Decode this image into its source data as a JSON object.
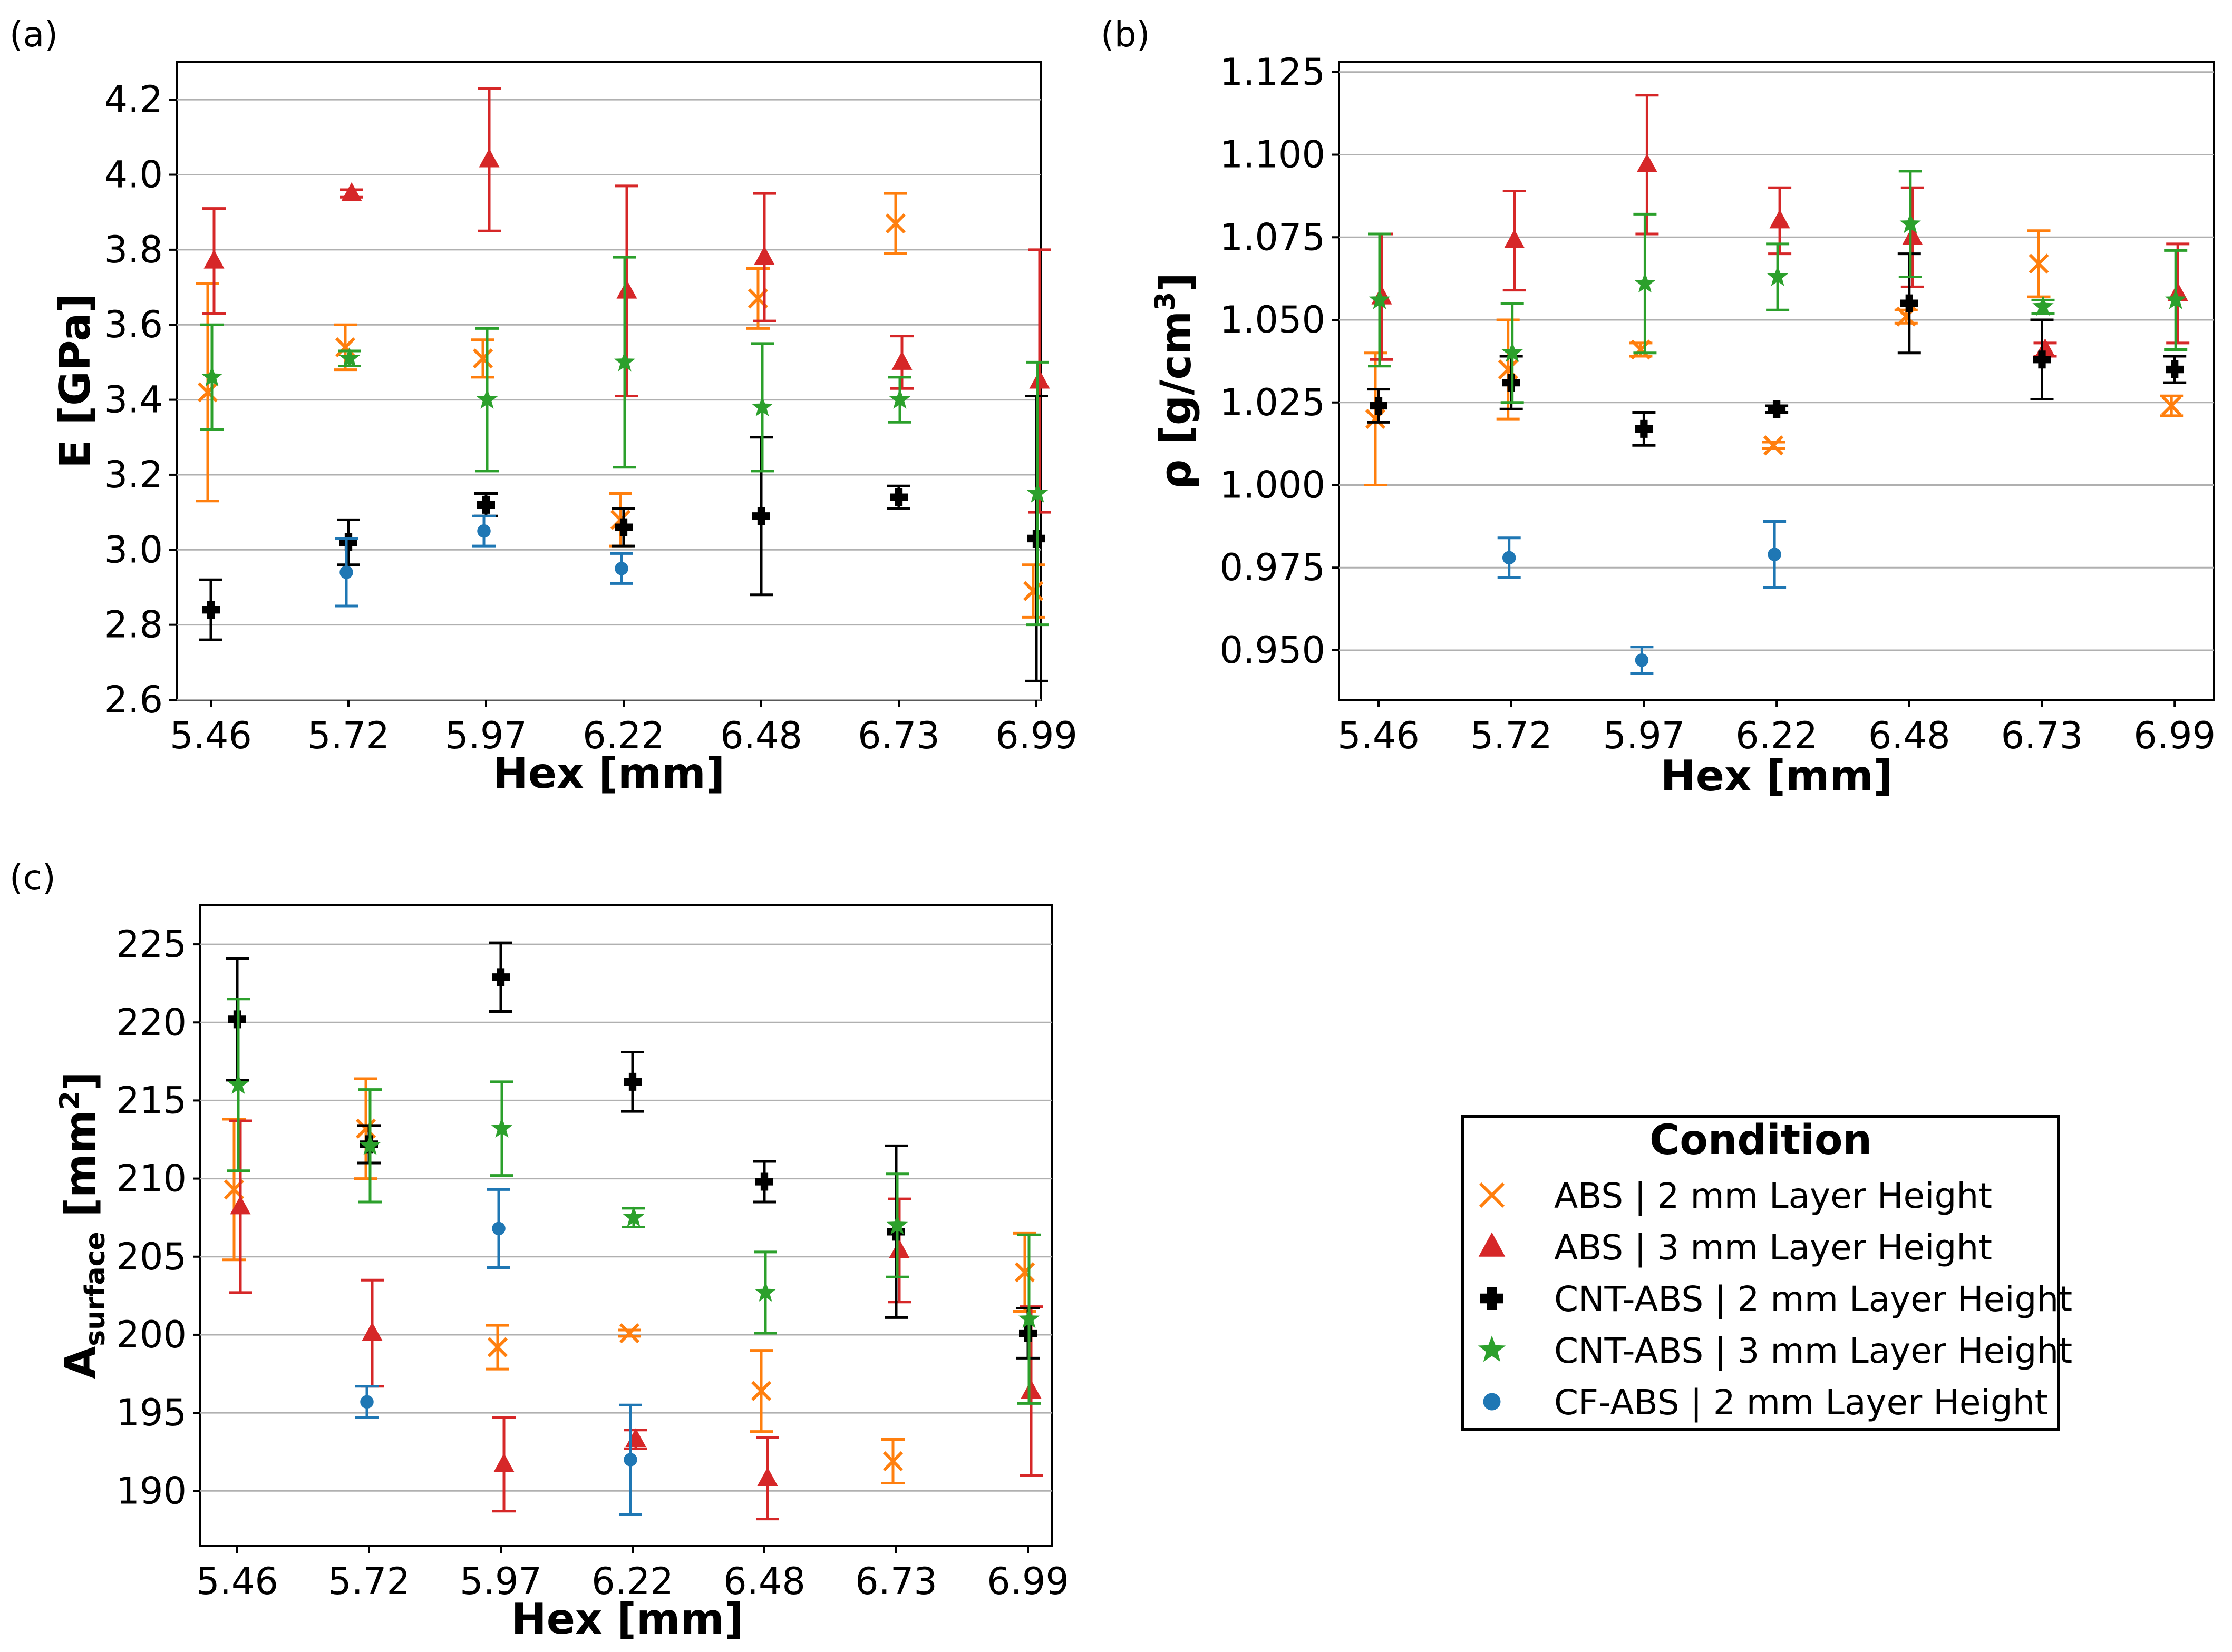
{
  "panel_labels": [
    "(a)",
    "(b)",
    "(c)"
  ],
  "legend": {
    "title": "Condition",
    "entries": [
      {
        "label": "ABS | 2 mm Layer Height",
        "color": "#ff7f0e",
        "marker": "x"
      },
      {
        "label": "ABS | 3 mm Layer Height",
        "color": "#d62728",
        "marker": "triangle"
      },
      {
        "label": "CNT-ABS | 2 mm Layer Height",
        "color": "#000000",
        "marker": "plus"
      },
      {
        "label": "CNT-ABS | 3 mm Layer Height",
        "color": "#2ca02c",
        "marker": "star"
      },
      {
        "label": "CF-ABS | 2 mm Layer Height",
        "color": "#1f77b4",
        "marker": "circle"
      }
    ]
  },
  "chart_data": [
    {
      "type": "scatter",
      "panel": "(a)",
      "xlabel": "Hex [mm]",
      "ylabel": "E [GPa]",
      "categories": [
        "5.46",
        "5.72",
        "5.97",
        "6.22",
        "6.48",
        "6.73",
        "6.99"
      ],
      "ylim": [
        2.6,
        4.3
      ],
      "yticks": [
        "2.6",
        "2.8",
        "3.0",
        "3.2",
        "3.4",
        "3.6",
        "3.8",
        "4.0",
        "4.2"
      ],
      "grid": "horizontal",
      "series": [
        {
          "name": "ABS | 2 mm Layer Height",
          "values": [
            3.42,
            3.54,
            3.51,
            3.08,
            3.67,
            3.87,
            2.89
          ],
          "errors": [
            0.29,
            0.06,
            0.05,
            0.07,
            0.08,
            0.08,
            0.07
          ]
        },
        {
          "name": "ABS | 3 mm Layer Height",
          "values": [
            3.77,
            3.95,
            4.04,
            3.69,
            3.78,
            3.5,
            3.45
          ],
          "errors": [
            0.14,
            0.01,
            0.19,
            0.28,
            0.17,
            0.07,
            0.35
          ]
        },
        {
          "name": "CNT-ABS | 2 mm Layer Height",
          "values": [
            2.84,
            3.02,
            3.12,
            3.06,
            3.09,
            3.14,
            3.03
          ],
          "errors": [
            0.08,
            0.06,
            0.03,
            0.05,
            0.21,
            0.03,
            0.38
          ]
        },
        {
          "name": "CNT-ABS | 3 mm Layer Height",
          "values": [
            3.46,
            3.51,
            3.4,
            3.5,
            3.38,
            3.4,
            3.15
          ],
          "errors": [
            0.14,
            0.02,
            0.19,
            0.28,
            0.17,
            0.06,
            0.35
          ]
        },
        {
          "name": "CF-ABS | 2 mm Layer Height",
          "values": [
            null,
            2.94,
            3.05,
            2.95,
            null,
            null,
            null
          ],
          "errors": [
            null,
            0.09,
            0.04,
            0.04,
            null,
            null,
            null
          ]
        }
      ]
    },
    {
      "type": "scatter",
      "panel": "(b)",
      "xlabel": "Hex [mm]",
      "ylabel": "ρ [g/cm3]",
      "categories": [
        "5.46",
        "5.72",
        "5.97",
        "6.22",
        "6.48",
        "6.73",
        "6.99"
      ],
      "ylim": [
        0.935,
        1.128
      ],
      "yticks": [
        "0.950",
        "0.975",
        "1.000",
        "1.025",
        "1.050",
        "1.075",
        "1.100",
        "1.125"
      ],
      "grid": "horizontal",
      "series": [
        {
          "name": "ABS | 2 mm Layer Height",
          "values": [
            1.02,
            1.035,
            1.041,
            1.012,
            1.051,
            1.067,
            1.024
          ],
          "errors": [
            0.02,
            0.015,
            0.002,
            0.001,
            0.002,
            0.01,
            0.003
          ]
        },
        {
          "name": "ABS | 3 mm Layer Height",
          "values": [
            1.057,
            1.074,
            1.097,
            1.08,
            1.075,
            1.041,
            1.058
          ],
          "errors": [
            0.019,
            0.015,
            0.021,
            0.01,
            0.015,
            0.002,
            0.015
          ]
        },
        {
          "name": "CNT-ABS | 2 mm Layer Height",
          "values": [
            1.024,
            1.031,
            1.017,
            1.023,
            1.055,
            1.038,
            1.035
          ],
          "errors": [
            0.005,
            0.008,
            0.005,
            0.001,
            0.015,
            0.012,
            0.004
          ]
        },
        {
          "name": "CNT-ABS | 3 mm Layer Height",
          "values": [
            1.056,
            1.04,
            1.061,
            1.063,
            1.079,
            1.054,
            1.056
          ],
          "errors": [
            0.02,
            0.015,
            0.021,
            0.01,
            0.016,
            0.002,
            0.015
          ]
        },
        {
          "name": "CF-ABS | 2 mm Layer Height",
          "values": [
            null,
            0.978,
            0.947,
            0.979,
            null,
            null,
            null
          ],
          "errors": [
            null,
            0.006,
            0.004,
            0.01,
            null,
            null,
            null
          ]
        }
      ]
    },
    {
      "type": "scatter",
      "panel": "(c)",
      "xlabel": "Hex [mm]",
      "ylabel": "Asurface [mm2]",
      "categories": [
        "5.46",
        "5.72",
        "5.97",
        "6.22",
        "6.48",
        "6.73",
        "6.99"
      ],
      "ylim": [
        186.5,
        227.5
      ],
      "yticks": [
        "190",
        "195",
        "200",
        "205",
        "210",
        "215",
        "220",
        "225"
      ],
      "grid": "horizontal",
      "series": [
        {
          "name": "ABS | 2 mm Layer Height",
          "values": [
            209.3,
            213.2,
            199.2,
            200.1,
            196.4,
            191.9,
            204.0
          ],
          "errors": [
            4.5,
            3.2,
            1.4,
            0.2,
            2.6,
            1.4,
            2.5
          ]
        },
        {
          "name": "ABS | 3 mm Layer Height",
          "values": [
            208.2,
            200.1,
            191.7,
            193.3,
            190.8,
            205.4,
            196.4
          ],
          "errors": [
            5.5,
            3.4,
            3.0,
            0.6,
            2.6,
            3.3,
            5.4
          ]
        },
        {
          "name": "CNT-ABS | 2 mm Layer Height",
          "values": [
            220.2,
            212.2,
            222.9,
            216.2,
            209.8,
            206.6,
            200.1
          ],
          "errors": [
            3.9,
            1.2,
            2.2,
            1.9,
            1.3,
            5.5,
            1.6
          ]
        },
        {
          "name": "CNT-ABS | 3 mm Layer Height",
          "values": [
            216.0,
            212.1,
            213.2,
            207.5,
            202.7,
            207.0,
            201.0
          ],
          "errors": [
            5.5,
            3.6,
            3.0,
            0.6,
            2.6,
            3.3,
            5.4
          ]
        },
        {
          "name": "CF-ABS | 2 mm Layer Height",
          "values": [
            null,
            195.7,
            206.8,
            192.0,
            null,
            null,
            null
          ],
          "errors": [
            null,
            1.0,
            2.5,
            3.5,
            null,
            null,
            null
          ]
        }
      ]
    }
  ]
}
